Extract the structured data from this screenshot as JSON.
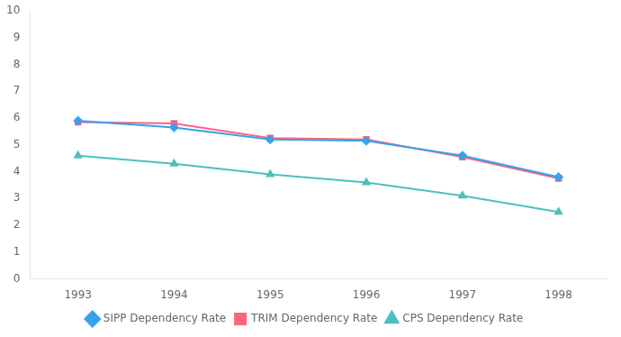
{
  "chart_data": {
    "type": "line",
    "x": [
      1993,
      1994,
      1995,
      1996,
      1997,
      1998
    ],
    "series": [
      {
        "name": "SIPP Dependency Rate",
        "marker": "diamond",
        "values": [
          5.9,
          5.65,
          5.2,
          5.15,
          4.6,
          3.8
        ]
      },
      {
        "name": "TRIM Dependency Rate",
        "marker": "square",
        "values": [
          5.85,
          5.8,
          5.25,
          5.2,
          4.55,
          3.75
        ]
      },
      {
        "name": "CPS Dependency Rate",
        "marker": "triangle",
        "values": [
          4.6,
          4.3,
          3.9,
          3.6,
          3.1,
          2.5
        ]
      }
    ],
    "xlim": [
      1992.5,
      1998.5
    ],
    "xticks": [
      1993,
      1994,
      1995,
      1996,
      1997,
      1998
    ],
    "ylim": [
      0,
      10
    ],
    "yticks": [
      0,
      1,
      2,
      3,
      4,
      5,
      6,
      7,
      8,
      9,
      10
    ],
    "grid": false,
    "legend": "bottom"
  }
}
